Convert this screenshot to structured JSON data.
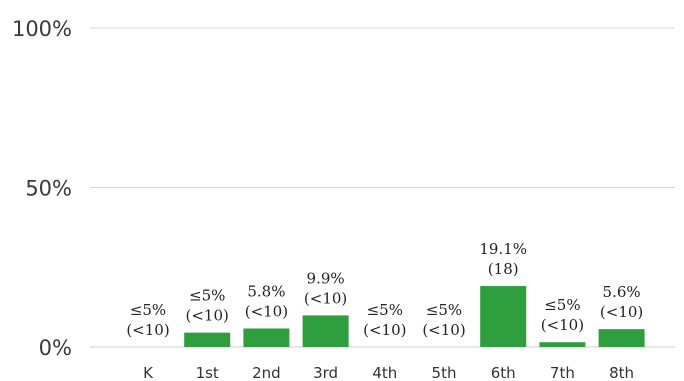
{
  "chart_data": {
    "type": "bar",
    "categories": [
      "K",
      "1st",
      "2nd",
      "3rd",
      "4th",
      "5th",
      "6th",
      "7th",
      "8th"
    ],
    "values": [
      0,
      4.5,
      5.8,
      9.9,
      0,
      0,
      19.1,
      1.5,
      5.6
    ],
    "data_labels": [
      [
        "≤5%",
        "(<10)"
      ],
      [
        "≤5%",
        "(<10)"
      ],
      [
        "5.8%",
        "(<10)"
      ],
      [
        "9.9%",
        "(<10)"
      ],
      [
        "≤5%",
        "(<10)"
      ],
      [
        "≤5%",
        "(<10)"
      ],
      [
        "19.1%",
        "(18)"
      ],
      [
        "≤5%",
        "(<10)"
      ],
      [
        "5.6%",
        "(<10)"
      ]
    ],
    "ylim": [
      0,
      100
    ],
    "yticks": [
      "0%",
      "50%",
      "100%"
    ],
    "ytick_values": [
      0,
      50,
      100
    ],
    "bar_color": "#2e9e3e",
    "grid": true,
    "title": "",
    "xlabel": "",
    "ylabel": ""
  }
}
